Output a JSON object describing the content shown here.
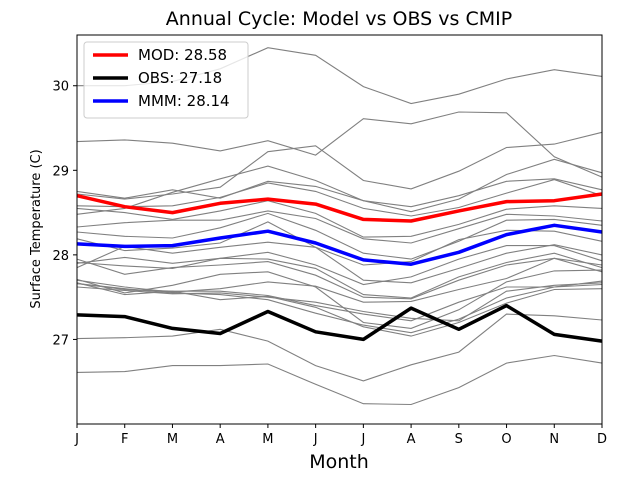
{
  "chart_data": {
    "type": "line",
    "title": "Annual Cycle: Model vs OBS vs CMIP",
    "xlabel": "Month",
    "ylabel": "Surface Temperature (C)",
    "categories": [
      "J",
      "F",
      "M",
      "A",
      "M",
      "J",
      "J",
      "A",
      "S",
      "O",
      "N",
      "D"
    ],
    "ylim": [
      26.0,
      30.6
    ],
    "yticks": [
      27,
      28,
      29,
      30
    ],
    "legend_position": "top-left",
    "series": [
      {
        "name": "MOD: 28.58",
        "color": "#ff0000",
        "values": [
          28.7,
          28.57,
          28.5,
          28.61,
          28.66,
          28.6,
          28.42,
          28.4,
          28.52,
          28.63,
          28.64,
          28.72
        ]
      },
      {
        "name": "OBS: 27.18",
        "color": "#000000",
        "values": [
          27.29,
          27.27,
          27.13,
          27.07,
          27.33,
          27.09,
          27.0,
          27.37,
          27.12,
          27.4,
          27.06,
          26.98
        ]
      },
      {
        "name": "MMM: 28.14",
        "color": "#0000ff",
        "values": [
          28.13,
          28.1,
          28.11,
          28.2,
          28.28,
          28.14,
          27.94,
          27.89,
          28.03,
          28.24,
          28.35,
          28.27
        ]
      }
    ],
    "cmip_color": "#808080",
    "cmip_members": [
      [
        30.0,
        30.0,
        30.05,
        30.2,
        30.45,
        30.36,
        29.99,
        29.79,
        29.9,
        30.08,
        30.19,
        30.11
      ],
      [
        29.34,
        29.36,
        29.32,
        29.23,
        29.35,
        29.18,
        29.61,
        29.55,
        29.69,
        29.68,
        29.16,
        28.92
      ],
      [
        28.48,
        28.55,
        28.74,
        28.9,
        29.05,
        28.88,
        28.64,
        28.51,
        28.66,
        28.95,
        29.13,
        28.97
      ],
      [
        28.72,
        28.66,
        28.72,
        28.8,
        29.22,
        29.29,
        28.88,
        28.78,
        28.99,
        29.27,
        29.31,
        29.45
      ],
      [
        28.75,
        28.67,
        28.77,
        28.67,
        28.87,
        28.81,
        28.64,
        28.57,
        28.7,
        28.87,
        28.9,
        28.77
      ],
      [
        28.58,
        28.57,
        28.58,
        28.68,
        28.85,
        28.75,
        28.55,
        28.46,
        28.56,
        28.73,
        28.89,
        28.7
      ],
      [
        28.55,
        28.5,
        28.42,
        28.52,
        28.64,
        28.49,
        28.21,
        28.22,
        28.36,
        28.54,
        28.58,
        28.55
      ],
      [
        28.33,
        28.38,
        28.41,
        28.41,
        28.52,
        28.43,
        28.19,
        28.14,
        28.31,
        28.48,
        28.46,
        28.4
      ],
      [
        28.27,
        28.22,
        28.2,
        28.32,
        28.49,
        28.29,
        28.02,
        27.95,
        28.16,
        28.41,
        28.42,
        28.35
      ],
      [
        28.19,
        28.05,
        28.08,
        28.14,
        28.39,
        28.09,
        27.88,
        27.92,
        28.18,
        28.29,
        28.28,
        28.16
      ],
      [
        27.9,
        27.97,
        27.9,
        27.96,
        28.03,
        27.88,
        27.65,
        27.74,
        27.95,
        28.11,
        28.11,
        27.93
      ],
      [
        27.85,
        28.1,
        28.02,
        28.09,
        28.15,
        28.09,
        27.7,
        27.67,
        27.84,
        28.02,
        28.12,
        28.0
      ],
      [
        27.91,
        27.87,
        27.84,
        27.96,
        27.95,
        27.84,
        27.53,
        27.49,
        27.74,
        27.91,
        28.02,
        27.85
      ],
      [
        27.95,
        27.77,
        27.85,
        27.88,
        27.92,
        27.76,
        27.5,
        27.48,
        27.7,
        27.88,
        27.96,
        27.88
      ],
      [
        27.7,
        27.62,
        27.56,
        27.6,
        27.68,
        27.63,
        27.44,
        27.45,
        27.59,
        27.72,
        27.96,
        27.8
      ],
      [
        27.71,
        27.55,
        27.64,
        27.77,
        27.8,
        27.62,
        27.2,
        27.13,
        27.35,
        27.68,
        27.81,
        27.82
      ],
      [
        27.66,
        27.59,
        27.57,
        27.57,
        27.52,
        27.4,
        27.3,
        27.22,
        27.44,
        27.62,
        27.62,
        27.69
      ],
      [
        27.62,
        27.58,
        27.54,
        27.55,
        27.5,
        27.44,
        27.33,
        27.25,
        27.22,
        27.57,
        27.64,
        27.67
      ],
      [
        27.66,
        27.6,
        27.55,
        27.53,
        27.47,
        27.31,
        27.17,
        27.08,
        27.24,
        27.49,
        27.62,
        27.65
      ],
      [
        27.67,
        27.53,
        27.57,
        27.47,
        27.51,
        27.38,
        27.15,
        27.04,
        27.2,
        27.43,
        27.59,
        27.6
      ],
      [
        27.01,
        27.02,
        27.04,
        27.12,
        26.98,
        26.69,
        26.51,
        26.7,
        26.85,
        27.3,
        27.28,
        27.23
      ],
      [
        26.61,
        26.62,
        26.69,
        26.69,
        26.71,
        26.47,
        26.24,
        26.23,
        26.43,
        26.72,
        26.81,
        26.72
      ]
    ]
  }
}
